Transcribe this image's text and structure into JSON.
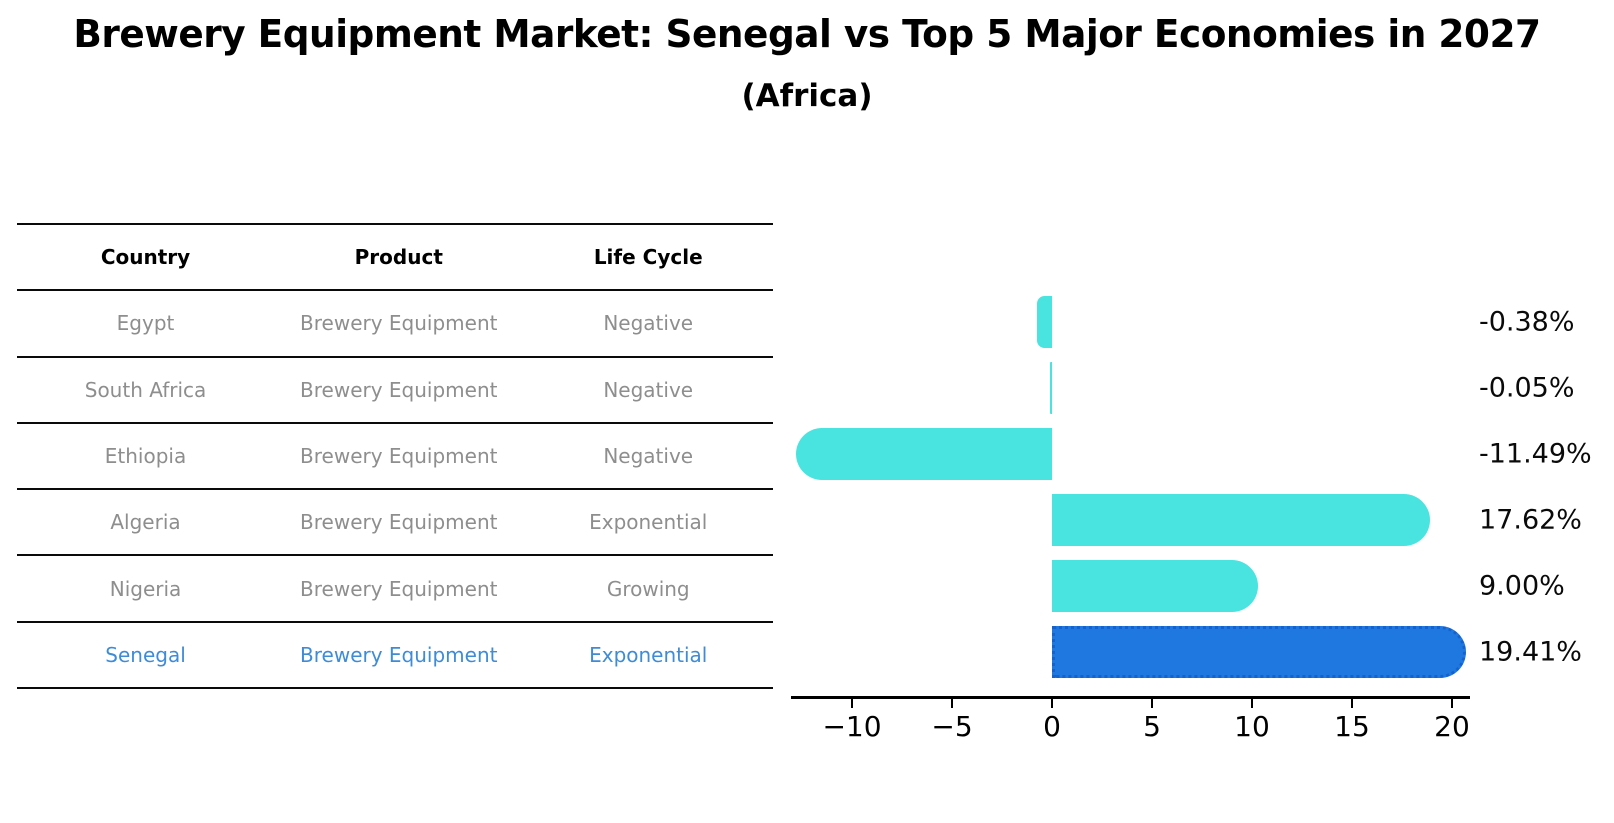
{
  "title": "Brewery Equipment Market: Senegal vs Top 5 Major Economies in 2027",
  "subtitle": "(Africa)",
  "table": {
    "headers": [
      "Country",
      "Product",
      "Life Cycle"
    ],
    "rows": [
      {
        "country": "Egypt",
        "product": "Brewery Equipment",
        "life_cycle": "Negative",
        "highlight": false
      },
      {
        "country": "South Africa",
        "product": "Brewery Equipment",
        "life_cycle": "Negative",
        "highlight": false
      },
      {
        "country": "Ethiopia",
        "product": "Brewery Equipment",
        "life_cycle": "Negative",
        "highlight": false
      },
      {
        "country": "Algeria",
        "product": "Brewery Equipment",
        "life_cycle": "Exponential",
        "highlight": false
      },
      {
        "country": "Nigeria",
        "product": "Brewery Equipment",
        "life_cycle": "Growing",
        "highlight": false
      },
      {
        "country": "Senegal",
        "product": "Brewery Equipment",
        "life_cycle": "Exponential",
        "highlight": true
      }
    ]
  },
  "chart_data": {
    "type": "bar",
    "orientation": "horizontal",
    "title": "Brewery Equipment Market: Senegal vs Top 5 Major Economies in 2027 (Africa)",
    "categories": [
      "Egypt",
      "South Africa",
      "Ethiopia",
      "Algeria",
      "Nigeria",
      "Senegal"
    ],
    "values": [
      -0.38,
      -0.05,
      -11.49,
      17.62,
      9.0,
      19.41
    ],
    "value_labels": [
      "-0.38%",
      "-0.05%",
      "-11.49%",
      "17.62%",
      "9.00%",
      "19.41%"
    ],
    "x_ticks": [
      -10,
      -5,
      0,
      5,
      10,
      15,
      20
    ],
    "x_tick_labels": [
      "−10",
      "−5",
      "0",
      "5",
      "10",
      "15",
      "20"
    ],
    "xlim": [
      -13.04,
      20.96
    ],
    "grid": false,
    "legend": null,
    "bar_color": "#49E4E0",
    "highlight_index": 5,
    "highlight_bar_color": "#1E78DF",
    "highlight_border_color": "#1562CE"
  },
  "colors": {
    "background": "#ffffff",
    "table_text_gray": "#8e8e8e",
    "table_highlight_text": "#3e8cd8",
    "axis_black": "#000000"
  }
}
